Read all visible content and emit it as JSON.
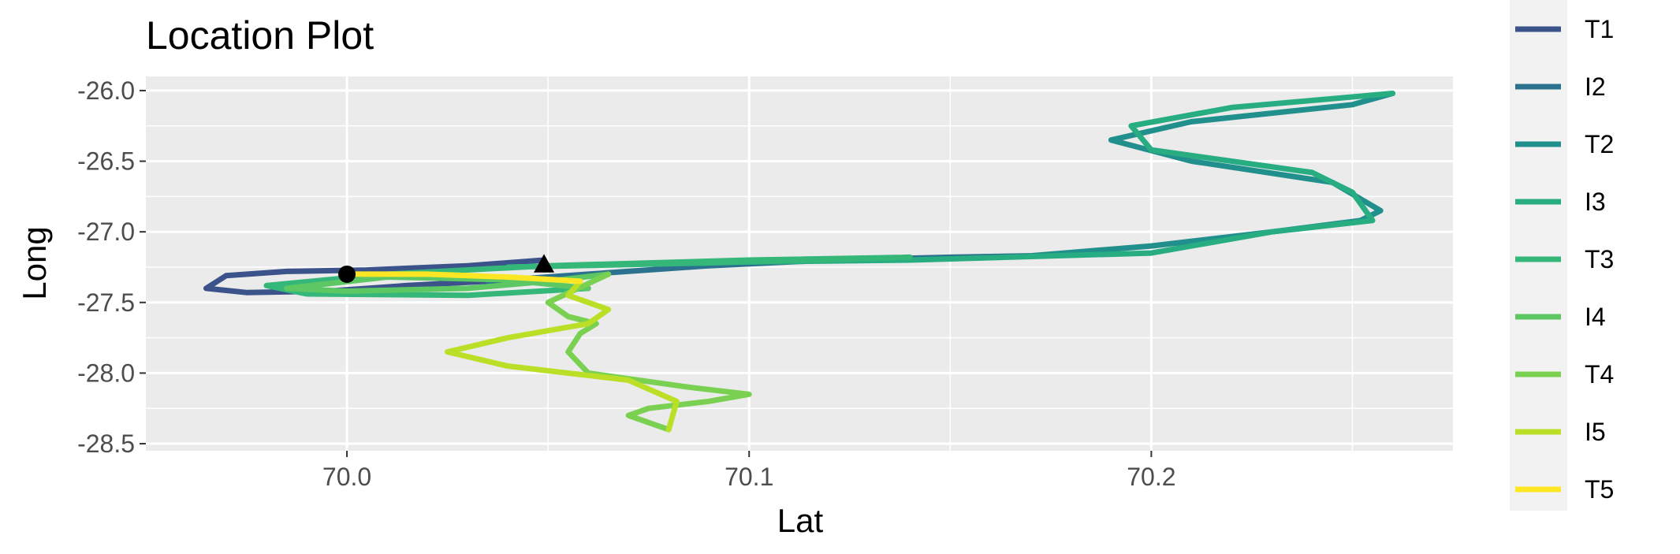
{
  "chart_data": {
    "type": "line",
    "title": "Location Plot",
    "xlabel": "Lat",
    "ylabel": "Long",
    "xlim": [
      69.95,
      70.275
    ],
    "ylim": [
      -28.55,
      -25.9
    ],
    "xticks": [
      70.0,
      70.1,
      70.2
    ],
    "xtick_labels": [
      "70.0",
      "70.1",
      "70.2"
    ],
    "yticks": [
      -26.0,
      -26.5,
      -27.0,
      -27.5,
      -28.0,
      -28.5
    ],
    "ytick_labels": [
      "-26.0",
      "-26.5",
      "-27.0",
      "-27.5",
      "-28.0",
      "-28.5"
    ],
    "grid": true,
    "legend_position": "right",
    "series": [
      {
        "name": "T1",
        "color": "#3B528B",
        "x": [
          70.049,
          70.03,
          70.005,
          69.985,
          69.97,
          69.965,
          69.975,
          69.995,
          70.015,
          70.035
        ],
        "y": [
          -27.2,
          -27.24,
          -27.27,
          -27.28,
          -27.31,
          -27.4,
          -27.43,
          -27.42,
          -27.38,
          -27.35
        ]
      },
      {
        "name": "I2",
        "color": "#2C728E",
        "x": [
          70.035,
          70.06,
          70.09,
          70.12,
          70.15,
          70.17
        ],
        "y": [
          -27.35,
          -27.3,
          -27.24,
          -27.2,
          -27.18,
          -27.17
        ]
      },
      {
        "name": "T2",
        "color": "#21908C",
        "x": [
          70.17,
          70.2,
          70.23,
          70.252,
          70.257,
          70.245,
          70.21,
          70.19,
          70.21,
          70.25,
          70.26
        ],
        "y": [
          -27.17,
          -27.1,
          -27.0,
          -26.92,
          -26.85,
          -26.65,
          -26.5,
          -26.35,
          -26.22,
          -26.1,
          -26.02
        ]
      },
      {
        "name": "I3",
        "color": "#27AD81",
        "x": [
          70.26,
          70.22,
          70.195,
          70.2,
          70.24,
          70.25,
          70.255,
          70.23,
          70.2,
          70.14,
          70.08,
          70.04
        ],
        "y": [
          -26.02,
          -26.12,
          -26.25,
          -26.42,
          -26.58,
          -26.72,
          -26.92,
          -27.0,
          -27.15,
          -27.2,
          -27.22,
          -27.25
        ]
      },
      {
        "name": "T3",
        "color": "#35B779",
        "x": [
          70.04,
          70.09,
          70.14,
          70.1,
          70.05,
          70.01,
          69.98,
          69.99,
          70.03,
          70.06
        ],
        "y": [
          -27.25,
          -27.22,
          -27.18,
          -27.2,
          -27.24,
          -27.3,
          -27.38,
          -27.44,
          -27.45,
          -27.4
        ]
      },
      {
        "name": "I4",
        "color": "#5DC863",
        "x": [
          70.06,
          70.04,
          70.01,
          69.985,
          70.0,
          70.03,
          70.05,
          70.065
        ],
        "y": [
          -27.4,
          -27.34,
          -27.32,
          -27.4,
          -27.42,
          -27.4,
          -27.35,
          -27.3
        ]
      },
      {
        "name": "T4",
        "color": "#7AD151",
        "x": [
          70.065,
          70.05,
          70.055,
          70.062,
          70.058,
          70.055,
          70.06,
          70.085,
          70.1,
          70.09,
          70.075,
          70.07,
          70.075,
          70.08
        ],
        "y": [
          -27.3,
          -27.5,
          -27.6,
          -27.65,
          -27.72,
          -27.85,
          -28.0,
          -28.1,
          -28.15,
          -28.2,
          -28.25,
          -28.3,
          -28.35,
          -28.4
        ]
      },
      {
        "name": "I5",
        "color": "#BBDF27",
        "x": [
          70.08,
          70.082,
          70.07,
          70.04,
          70.025,
          70.04,
          70.06,
          70.065,
          70.055,
          70.058
        ],
        "y": [
          -28.4,
          -28.2,
          -28.05,
          -27.95,
          -27.85,
          -27.75,
          -27.65,
          -27.55,
          -27.45,
          -27.35
        ]
      },
      {
        "name": "T5",
        "color": "#FDE725",
        "x": [
          70.058,
          70.04,
          70.02,
          70.005,
          70.0
        ],
        "y": [
          -27.35,
          -27.32,
          -27.3,
          -27.3,
          -27.3
        ]
      }
    ],
    "markers": [
      {
        "shape": "circle",
        "x": 70.0,
        "y": -27.3,
        "color": "#000000"
      },
      {
        "shape": "triangle",
        "x": 70.049,
        "y": -27.23,
        "color": "#000000"
      }
    ]
  }
}
